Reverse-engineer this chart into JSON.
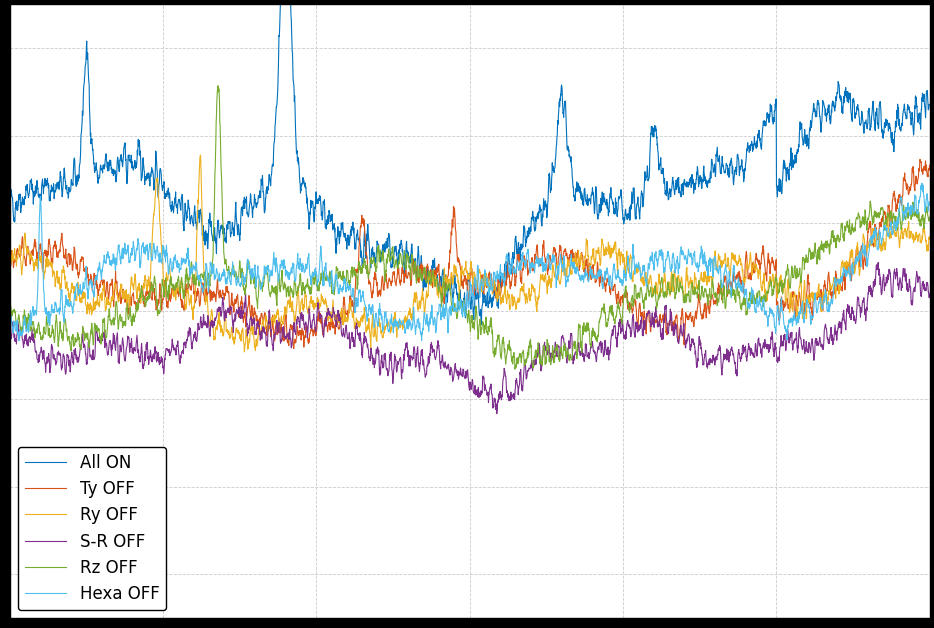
{
  "title": "",
  "xlabel": "",
  "ylabel": "",
  "legend_labels": [
    "All ON",
    "Ty OFF",
    "Ry OFF",
    "S-R OFF",
    "Rz OFF",
    "Hexa OFF"
  ],
  "line_colors": [
    "#0072BD",
    "#D95319",
    "#EDB120",
    "#7E2F8E",
    "#77AC30",
    "#4DBEEE"
  ],
  "line_widths": [
    0.8,
    0.8,
    0.8,
    0.8,
    0.8,
    0.8
  ],
  "background_color": "#FFFFFF",
  "grid_color": "#CCCCCC",
  "n_points": 3000,
  "seed": 42,
  "ylim": [
    -165,
    -95
  ],
  "xlim": [
    0,
    3000
  ],
  "fig_width": 9.34,
  "fig_height": 6.28,
  "dpi": 100,
  "legend_loc": "lower left",
  "legend_fontsize": 12,
  "outer_bg": "#000000"
}
